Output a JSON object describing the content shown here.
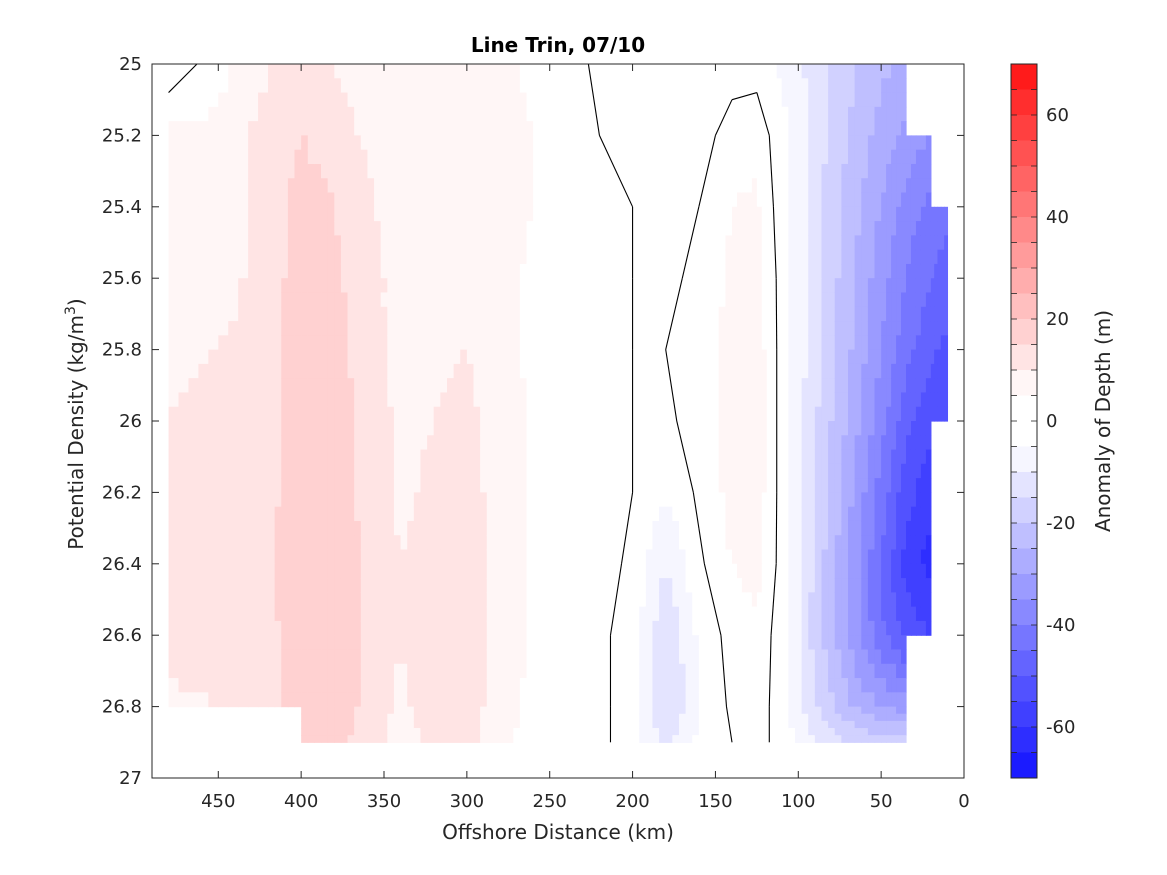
{
  "chart_data": {
    "type": "heatmap",
    "title": "Line Trin, 07/10",
    "xlabel": "Offshore Distance (km)",
    "ylabel": "Potential Density (kg/m^3)",
    "ylabel_main": "Potential Density (kg/m",
    "ylabel_sup": "3",
    "ylabel_end": ")",
    "colorbar_label": "Anomaly of Depth (m)",
    "xlim": [
      490,
      0
    ],
    "ylim": [
      25,
      27
    ],
    "x_reversed": true,
    "y_reversed": true,
    "xticks": [
      "450",
      "400",
      "350",
      "300",
      "250",
      "200",
      "150",
      "100",
      "50",
      "0"
    ],
    "yticks": [
      "25",
      "25.2",
      "25.4",
      "25.6",
      "25.8",
      "26",
      "26.2",
      "26.4",
      "26.6",
      "26.8",
      "27"
    ],
    "colorbar_ticks": [
      "60",
      "40",
      "20",
      "0",
      "-20",
      "-40",
      "-60"
    ],
    "clim": [
      -70,
      70
    ],
    "contour_levels_step": 5,
    "colormap": "blue-white-red",
    "colors": {
      "negative": "#0000ff",
      "zero": "#ffffff",
      "positive": "#ff0000"
    },
    "zero_contour": "black",
    "x": [
      480,
      450,
      420,
      400,
      380,
      360,
      340,
      320,
      300,
      280,
      260,
      240,
      220,
      200,
      180,
      160,
      140,
      125,
      110,
      90,
      70,
      50,
      35,
      20,
      10
    ],
    "y": [
      25.0,
      25.2,
      25.4,
      25.6,
      25.8,
      26.0,
      26.2,
      26.4,
      26.6,
      26.8,
      26.9
    ],
    "z": [
      [
        -4,
        3,
        10,
        12,
        10,
        7,
        5,
        6,
        7,
        6,
        4,
        2,
        -1,
        -3,
        -5,
        -3,
        -2,
        -2,
        -6,
        -12,
        -18,
        -24,
        -26,
        null,
        null
      ],
      [
        6,
        7,
        12,
        15,
        13,
        9,
        6,
        7,
        9,
        7,
        5,
        3,
        0,
        -1,
        -3,
        -2,
        2,
        3,
        -3,
        -12,
        -20,
        -27,
        -32,
        -35,
        null
      ],
      [
        6,
        7,
        12,
        17,
        15,
        11,
        7,
        7,
        8,
        6,
        5,
        3,
        1,
        0,
        -2,
        0,
        5,
        6,
        -3,
        -13,
        -22,
        -30,
        -37,
        -42,
        -44
      ],
      [
        7,
        8,
        12,
        18,
        16,
        12,
        8,
        8,
        9,
        7,
        4,
        3,
        1,
        0,
        -1,
        1,
        6,
        7,
        -2,
        -13,
        -23,
        -33,
        -40,
        -45,
        -47
      ],
      [
        9,
        10,
        12,
        18,
        17,
        12,
        8,
        9,
        10,
        7,
        4,
        3,
        2,
        0,
        0,
        2,
        7,
        8,
        -2,
        -13,
        -24,
        -35,
        -43,
        -49,
        -51
      ],
      [
        10,
        11,
        12,
        19,
        18,
        13,
        9,
        10,
        11,
        8,
        4,
        3,
        2,
        0,
        -1,
        2,
        7,
        8,
        -2,
        -14,
        -26,
        -38,
        -48,
        -54,
        -55
      ],
      [
        12,
        13,
        13,
        19,
        18,
        13,
        9,
        11,
        12,
        8,
        4,
        3,
        2,
        0,
        -5,
        1,
        7,
        8,
        -2,
        -15,
        -28,
        -42,
        -53,
        -58,
        null
      ],
      [
        13,
        12,
        14,
        19,
        19,
        14,
        10,
        12,
        13,
        8,
        4,
        3,
        2,
        -1,
        -10,
        -1,
        5,
        7,
        -2,
        -16,
        -30,
        -45,
        -57,
        -62,
        null
      ],
      [
        12,
        11,
        13,
        19,
        19,
        14,
        10,
        13,
        14,
        8,
        4,
        3,
        1,
        -2,
        -15,
        -4,
        2,
        4,
        -3,
        -17,
        -30,
        -44,
        -52,
        -55,
        null
      ],
      [
        9,
        10,
        12,
        18,
        20,
        13,
        9,
        12,
        13,
        7,
        4,
        5,
        1,
        -2,
        -16,
        -5,
        1,
        3,
        -3,
        -14,
        -24,
        -30,
        -32,
        null,
        null
      ],
      [
        null,
        null,
        null,
        16,
        17,
        12,
        8,
        11,
        12,
        6,
        3,
        2,
        1,
        -2,
        -12,
        -4,
        0,
        2,
        -2,
        -10,
        -15,
        -18,
        -18,
        null,
        null
      ]
    ]
  }
}
